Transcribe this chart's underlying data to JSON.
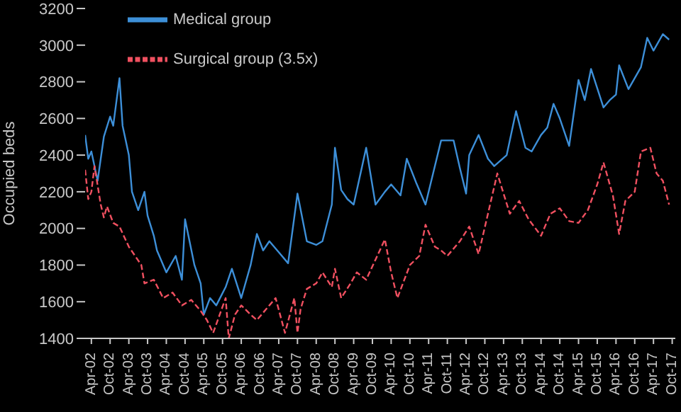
{
  "chart_data": {
    "type": "line",
    "ylabel": "Occupied beds",
    "ylim": [
      1400,
      3200
    ],
    "yticks": [
      1400,
      1600,
      1800,
      2000,
      2200,
      2400,
      2600,
      2800,
      3000,
      3200
    ],
    "xlim": [
      "2002-02",
      "2017-11"
    ],
    "xticks": [
      {
        "value": "2002-04",
        "label": "Apr-02"
      },
      {
        "value": "2002-10",
        "label": "Oct-02"
      },
      {
        "value": "2003-04",
        "label": "Apr-03"
      },
      {
        "value": "2003-10",
        "label": "Oct-03"
      },
      {
        "value": "2004-04",
        "label": "Apr-04"
      },
      {
        "value": "2004-10",
        "label": "Oct-04"
      },
      {
        "value": "2005-04",
        "label": "Apr-05"
      },
      {
        "value": "2005-10",
        "label": "Oct-05"
      },
      {
        "value": "2006-04",
        "label": "Apr-06"
      },
      {
        "value": "2006-10",
        "label": "Oct-06"
      },
      {
        "value": "2007-04",
        "label": "Apr-07"
      },
      {
        "value": "2007-10",
        "label": "Oct-07"
      },
      {
        "value": "2008-04",
        "label": "Apr-08"
      },
      {
        "value": "2008-10",
        "label": "Oct-08"
      },
      {
        "value": "2009-04",
        "label": "Apr-09"
      },
      {
        "value": "2009-10",
        "label": "Oct-09"
      },
      {
        "value": "2010-04",
        "label": "Apr-10"
      },
      {
        "value": "2010-10",
        "label": "Oct-10"
      },
      {
        "value": "2011-04",
        "label": "Apr-11"
      },
      {
        "value": "2011-10",
        "label": "Oct-11"
      },
      {
        "value": "2012-04",
        "label": "Apr-12"
      },
      {
        "value": "2012-10",
        "label": "Oct-12"
      },
      {
        "value": "2013-04",
        "label": "Apr-13"
      },
      {
        "value": "2013-10",
        "label": "Oct-13"
      },
      {
        "value": "2014-04",
        "label": "Apr-14"
      },
      {
        "value": "2014-10",
        "label": "Oct-14"
      },
      {
        "value": "2015-04",
        "label": "Apr-15"
      },
      {
        "value": "2015-10",
        "label": "Oct-15"
      },
      {
        "value": "2016-04",
        "label": "Apr-16"
      },
      {
        "value": "2016-10",
        "label": "Oct-16"
      },
      {
        "value": "2017-04",
        "label": "Apr-17"
      },
      {
        "value": "2017-10",
        "label": "Oct-17"
      }
    ],
    "grid": false,
    "legend": "top",
    "marker": "none",
    "series": [
      {
        "name": "Medical group",
        "color": "#3d8fd8",
        "line_style": "solid",
        "x": [
          "2002-02",
          "2002-03",
          "2002-04",
          "2002-06",
          "2002-08",
          "2002-10",
          "2002-11",
          "2003-01",
          "2003-02",
          "2003-04",
          "2003-05",
          "2003-07",
          "2003-09",
          "2003-10",
          "2003-12",
          "2004-01",
          "2004-04",
          "2004-07",
          "2004-09",
          "2004-10",
          "2005-01",
          "2005-03",
          "2005-04",
          "2005-06",
          "2005-08",
          "2005-11",
          "2006-01",
          "2006-04",
          "2006-07",
          "2006-09",
          "2006-11",
          "2007-01",
          "2007-04",
          "2007-07",
          "2007-10",
          "2008-01",
          "2008-04",
          "2008-06",
          "2008-09",
          "2008-10",
          "2008-12",
          "2009-02",
          "2009-04",
          "2009-08",
          "2009-11",
          "2010-02",
          "2010-04",
          "2010-07",
          "2010-09",
          "2010-12",
          "2011-03",
          "2011-08",
          "2011-12",
          "2012-02",
          "2012-04",
          "2012-05",
          "2012-08",
          "2012-11",
          "2013-01",
          "2013-05",
          "2013-08",
          "2013-11",
          "2014-01",
          "2014-04",
          "2014-06",
          "2014-08",
          "2014-10",
          "2015-01",
          "2015-04",
          "2015-06",
          "2015-08",
          "2015-12",
          "2016-02",
          "2016-04",
          "2016-05",
          "2016-08",
          "2016-10",
          "2016-12",
          "2017-02",
          "2017-04",
          "2017-07",
          "2017-09"
        ],
        "values": [
          2510,
          2380,
          2420,
          2260,
          2500,
          2610,
          2560,
          2820,
          2560,
          2400,
          2200,
          2100,
          2200,
          2070,
          1960,
          1880,
          1760,
          1850,
          1720,
          2050,
          1800,
          1700,
          1530,
          1620,
          1580,
          1680,
          1780,
          1620,
          1800,
          1970,
          1880,
          1930,
          1870,
          1810,
          2190,
          1930,
          1910,
          1930,
          2130,
          2440,
          2210,
          2160,
          2130,
          2440,
          2130,
          2200,
          2240,
          2180,
          2380,
          2250,
          2130,
          2480,
          2480,
          2330,
          2190,
          2400,
          2510,
          2380,
          2340,
          2400,
          2640,
          2440,
          2420,
          2510,
          2550,
          2680,
          2600,
          2450,
          2810,
          2700,
          2870,
          2660,
          2700,
          2730,
          2890,
          2760,
          2820,
          2880,
          3040,
          2970,
          3060,
          3030
        ]
      },
      {
        "name": "Surgical group (3.5x)",
        "color": "#f05060",
        "line_style": "dashed",
        "x": [
          "2002-02",
          "2002-03",
          "2002-04",
          "2002-05",
          "2002-07",
          "2002-08",
          "2002-09",
          "2002-11",
          "2003-01",
          "2003-04",
          "2003-06",
          "2003-08",
          "2003-09",
          "2003-12",
          "2004-03",
          "2004-06",
          "2004-09",
          "2004-12",
          "2005-03",
          "2005-05",
          "2005-07",
          "2005-11",
          "2005-12",
          "2006-02",
          "2006-04",
          "2006-07",
          "2006-09",
          "2006-12",
          "2007-03",
          "2007-06",
          "2007-09",
          "2007-10",
          "2007-11",
          "2008-01",
          "2008-04",
          "2008-06",
          "2008-09",
          "2008-10",
          "2008-12",
          "2009-03",
          "2009-05",
          "2009-08",
          "2009-11",
          "2010-02",
          "2010-04",
          "2010-06",
          "2010-10",
          "2011-01",
          "2011-03",
          "2011-06",
          "2011-08",
          "2011-10",
          "2012-02",
          "2012-05",
          "2012-08",
          "2012-11",
          "2013-02",
          "2013-04",
          "2013-06",
          "2013-09",
          "2013-12",
          "2014-04",
          "2014-07",
          "2014-10",
          "2015-01",
          "2015-04",
          "2015-07",
          "2015-10",
          "2015-12",
          "2016-03",
          "2016-05",
          "2016-07",
          "2016-10",
          "2016-12",
          "2017-03",
          "2017-05",
          "2017-07",
          "2017-09"
        ],
        "values": [
          2320,
          2160,
          2200,
          2340,
          2130,
          2060,
          2120,
          2030,
          2010,
          1900,
          1850,
          1800,
          1700,
          1720,
          1620,
          1650,
          1580,
          1610,
          1550,
          1500,
          1430,
          1620,
          1400,
          1530,
          1580,
          1530,
          1500,
          1560,
          1620,
          1430,
          1620,
          1430,
          1560,
          1670,
          1700,
          1760,
          1680,
          1780,
          1620,
          1700,
          1760,
          1720,
          1830,
          1940,
          1760,
          1620,
          1800,
          1850,
          2020,
          1900,
          1880,
          1850,
          1930,
          2010,
          1860,
          2080,
          2300,
          2190,
          2080,
          2150,
          2050,
          1960,
          2080,
          2110,
          2040,
          2030,
          2100,
          2240,
          2360,
          2180,
          1970,
          2150,
          2200,
          2420,
          2440,
          2300,
          2260,
          2130
        ]
      }
    ]
  }
}
